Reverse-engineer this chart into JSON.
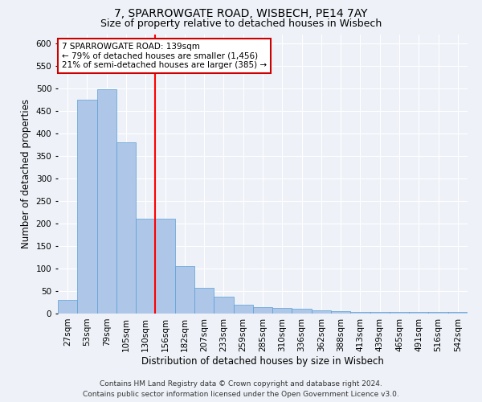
{
  "title1": "7, SPARROWGATE ROAD, WISBECH, PE14 7AY",
  "title2": "Size of property relative to detached houses in Wisbech",
  "xlabel": "Distribution of detached houses by size in Wisbech",
  "ylabel": "Number of detached properties",
  "footer1": "Contains HM Land Registry data © Crown copyright and database right 2024.",
  "footer2": "Contains public sector information licensed under the Open Government Licence v3.0.",
  "categories": [
    "27sqm",
    "53sqm",
    "79sqm",
    "105sqm",
    "130sqm",
    "156sqm",
    "182sqm",
    "207sqm",
    "233sqm",
    "259sqm",
    "285sqm",
    "310sqm",
    "336sqm",
    "362sqm",
    "388sqm",
    "413sqm",
    "439sqm",
    "465sqm",
    "491sqm",
    "516sqm",
    "542sqm"
  ],
  "values": [
    30,
    475,
    497,
    380,
    210,
    210,
    105,
    57,
    37,
    20,
    14,
    12,
    10,
    8,
    5,
    4,
    4,
    4,
    3,
    4,
    3
  ],
  "bar_color": "#aec6e8",
  "bar_edge_color": "#5a9fd4",
  "red_line_x": 4.5,
  "annotation_text": "7 SPARROWGATE ROAD: 139sqm\n← 79% of detached houses are smaller (1,456)\n21% of semi-detached houses are larger (385) →",
  "annotation_box_color": "#ffffff",
  "annotation_box_edge": "#cc0000",
  "ylim": [
    0,
    620
  ],
  "yticks": [
    0,
    50,
    100,
    150,
    200,
    250,
    300,
    350,
    400,
    450,
    500,
    550,
    600
  ],
  "background_color": "#eef2f8",
  "grid_color": "#ffffff",
  "title1_fontsize": 10,
  "title2_fontsize": 9,
  "xlabel_fontsize": 8.5,
  "ylabel_fontsize": 8.5,
  "tick_fontsize": 7.5,
  "footer_fontsize": 6.5,
  "annot_fontsize": 7.5
}
